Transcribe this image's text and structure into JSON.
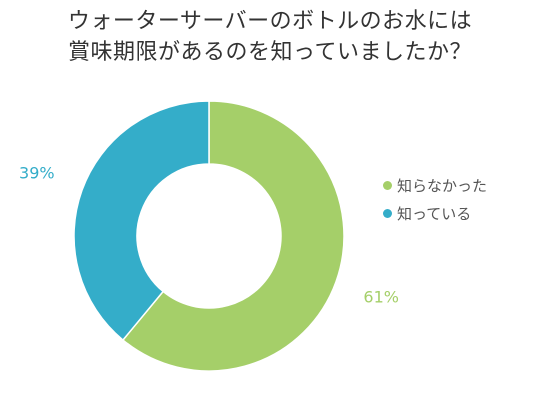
{
  "title": {
    "line1": "ウォーターサーバーのボトルのお水には",
    "line2": "賞味期限があるのを知っていましたか？"
  },
  "chart_data": {
    "type": "pie",
    "donut": true,
    "unit": "%",
    "series": [
      {
        "name": "知らなかった",
        "value": 61,
        "label": "61%",
        "color": "#a5cf69"
      },
      {
        "name": "知っている",
        "value": 39,
        "label": "39%",
        "color": "#34adc9"
      }
    ],
    "legend_position": "right",
    "start_angle": "top",
    "direction": "clockwise"
  }
}
